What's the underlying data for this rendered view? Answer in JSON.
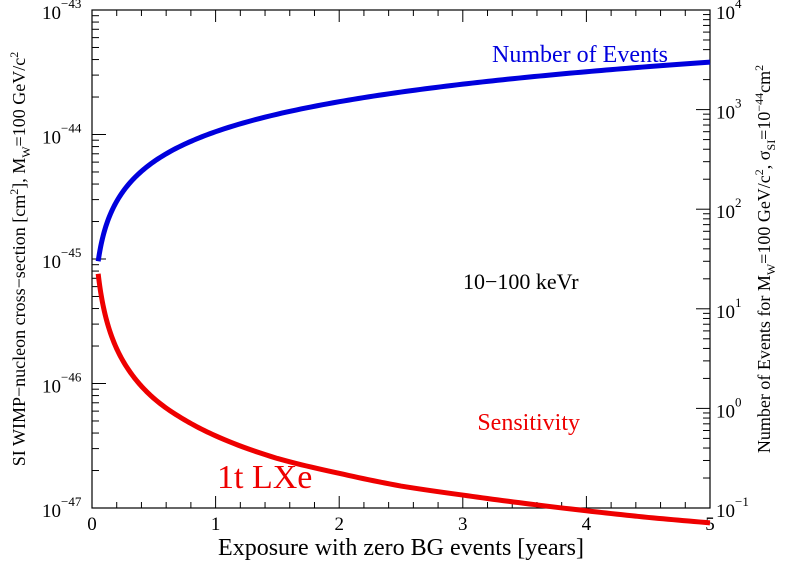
{
  "chart_data": {
    "type": "line",
    "x": [
      0.05,
      0.1,
      0.2,
      0.3,
      0.5,
      0.75,
      1,
      1.5,
      2,
      2.5,
      3,
      3.5,
      4,
      4.5,
      5
    ],
    "xlim": [
      0,
      5
    ],
    "xticks": [
      "0",
      "1",
      "2",
      "3",
      "4",
      "5"
    ],
    "xlabel": "Exposure with zero BG events [years]",
    "left_axis": {
      "label_parts": {
        "pre": "SI WIMP−nucleon cross−section [cm",
        "sup1": "2",
        "mid": "], M",
        "sub": "W",
        "post": "=100 GeV/c",
        "sup2": "2"
      },
      "scale": "log",
      "ylim": [
        1e-47,
        1e-43
      ],
      "tick_exponents": [
        "−43",
        "−44",
        "−45",
        "−46",
        "−47"
      ]
    },
    "right_axis": {
      "label_parts": {
        "pre": "Number of Events for M",
        "sub1": "W",
        "mid1": "=100 GeV/c",
        "sup1": "2",
        "mid2": ", σ",
        "sub2": "SI",
        "mid3": "=10",
        "sup2": "−44",
        "mid4": "cm",
        "sup3": "2"
      },
      "scale": "log",
      "ylim": [
        0.1,
        10000
      ],
      "tick_exponents": [
        "4",
        "3",
        "2",
        "1",
        "0",
        "−1"
      ]
    },
    "series": [
      {
        "name": "Number of Events",
        "axis": "right",
        "color": "#0000dd",
        "values": [
          30,
          60,
          120,
          180,
          300,
          450,
          600,
          900,
          1200,
          1500,
          1800,
          2100,
          2400,
          2700,
          3000
        ]
      },
      {
        "name": "Sensitivity",
        "axis": "left",
        "color": "#ee0000",
        "values": [
          7.6e-46,
          3.8e-46,
          1.9e-46,
          1.27e-46,
          7.6e-47,
          5.1e-47,
          3.8e-47,
          2.5e-47,
          1.9e-47,
          1.5e-47,
          1.27e-47,
          1.09e-47,
          9.5e-48,
          8.4e-48,
          7.6e-48
        ]
      }
    ],
    "annotations": {
      "energy_range": "10−100 keVr",
      "target": "1t LXe",
      "target_color": "#ee0000"
    },
    "grid": false,
    "tick_base": "10"
  }
}
